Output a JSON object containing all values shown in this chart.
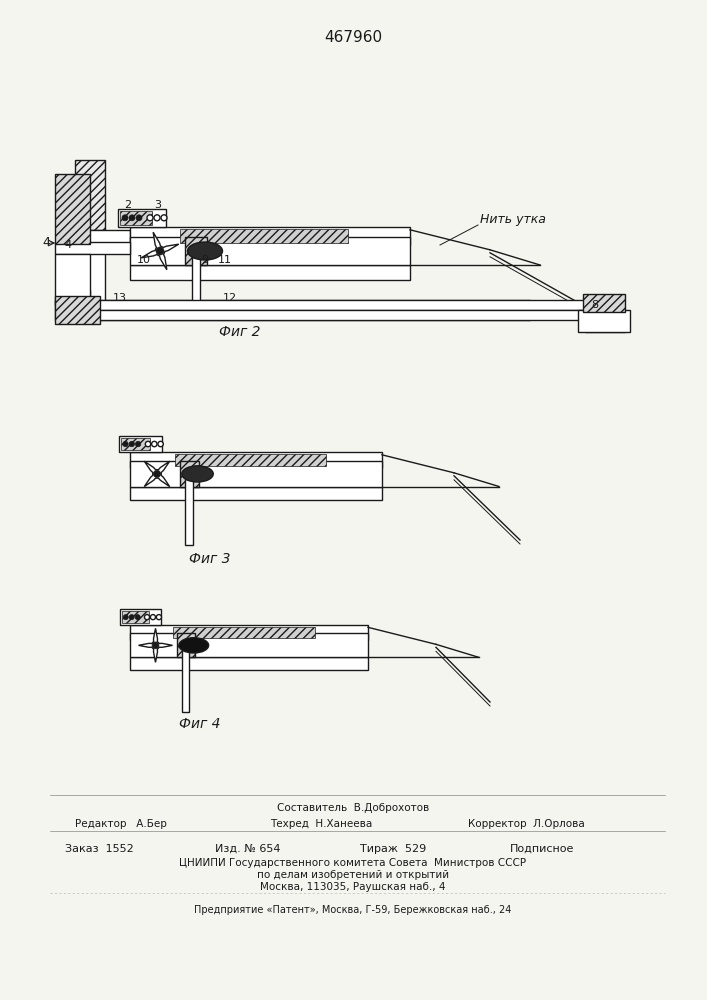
{
  "title": "467960",
  "bg_color": "#f5f5f0",
  "line_color": "#1a1a1a",
  "fig2_label": "Фиг 2",
  "fig3_label": "Фиг 3",
  "fig4_label": "Фиг 4",
  "nit_label": "Нить утка",
  "footer": {
    "sostavitel": "Составитель  В.Доброхотов",
    "redaktor": "Редактор   А.Бер",
    "tehred": "Техред  Н.Ханеева",
    "korrektor": "Корректор  Л.Орлова",
    "zakaz": "Заказ  1552",
    "izd": "Изд. № 654",
    "tirazh": "Тираж  529",
    "podpisnoe": "Подписное",
    "tsniipii": "ЦНИИПИ Государственного комитета Совета  Министров СССР",
    "po_delam": "по делам изобретений и открытий",
    "moskva": "Москва, 113035, Раушская наб., 4",
    "predpriyatie": "Предприятие «Патент», Москва, Г-59, Бережковская наб., 24"
  }
}
